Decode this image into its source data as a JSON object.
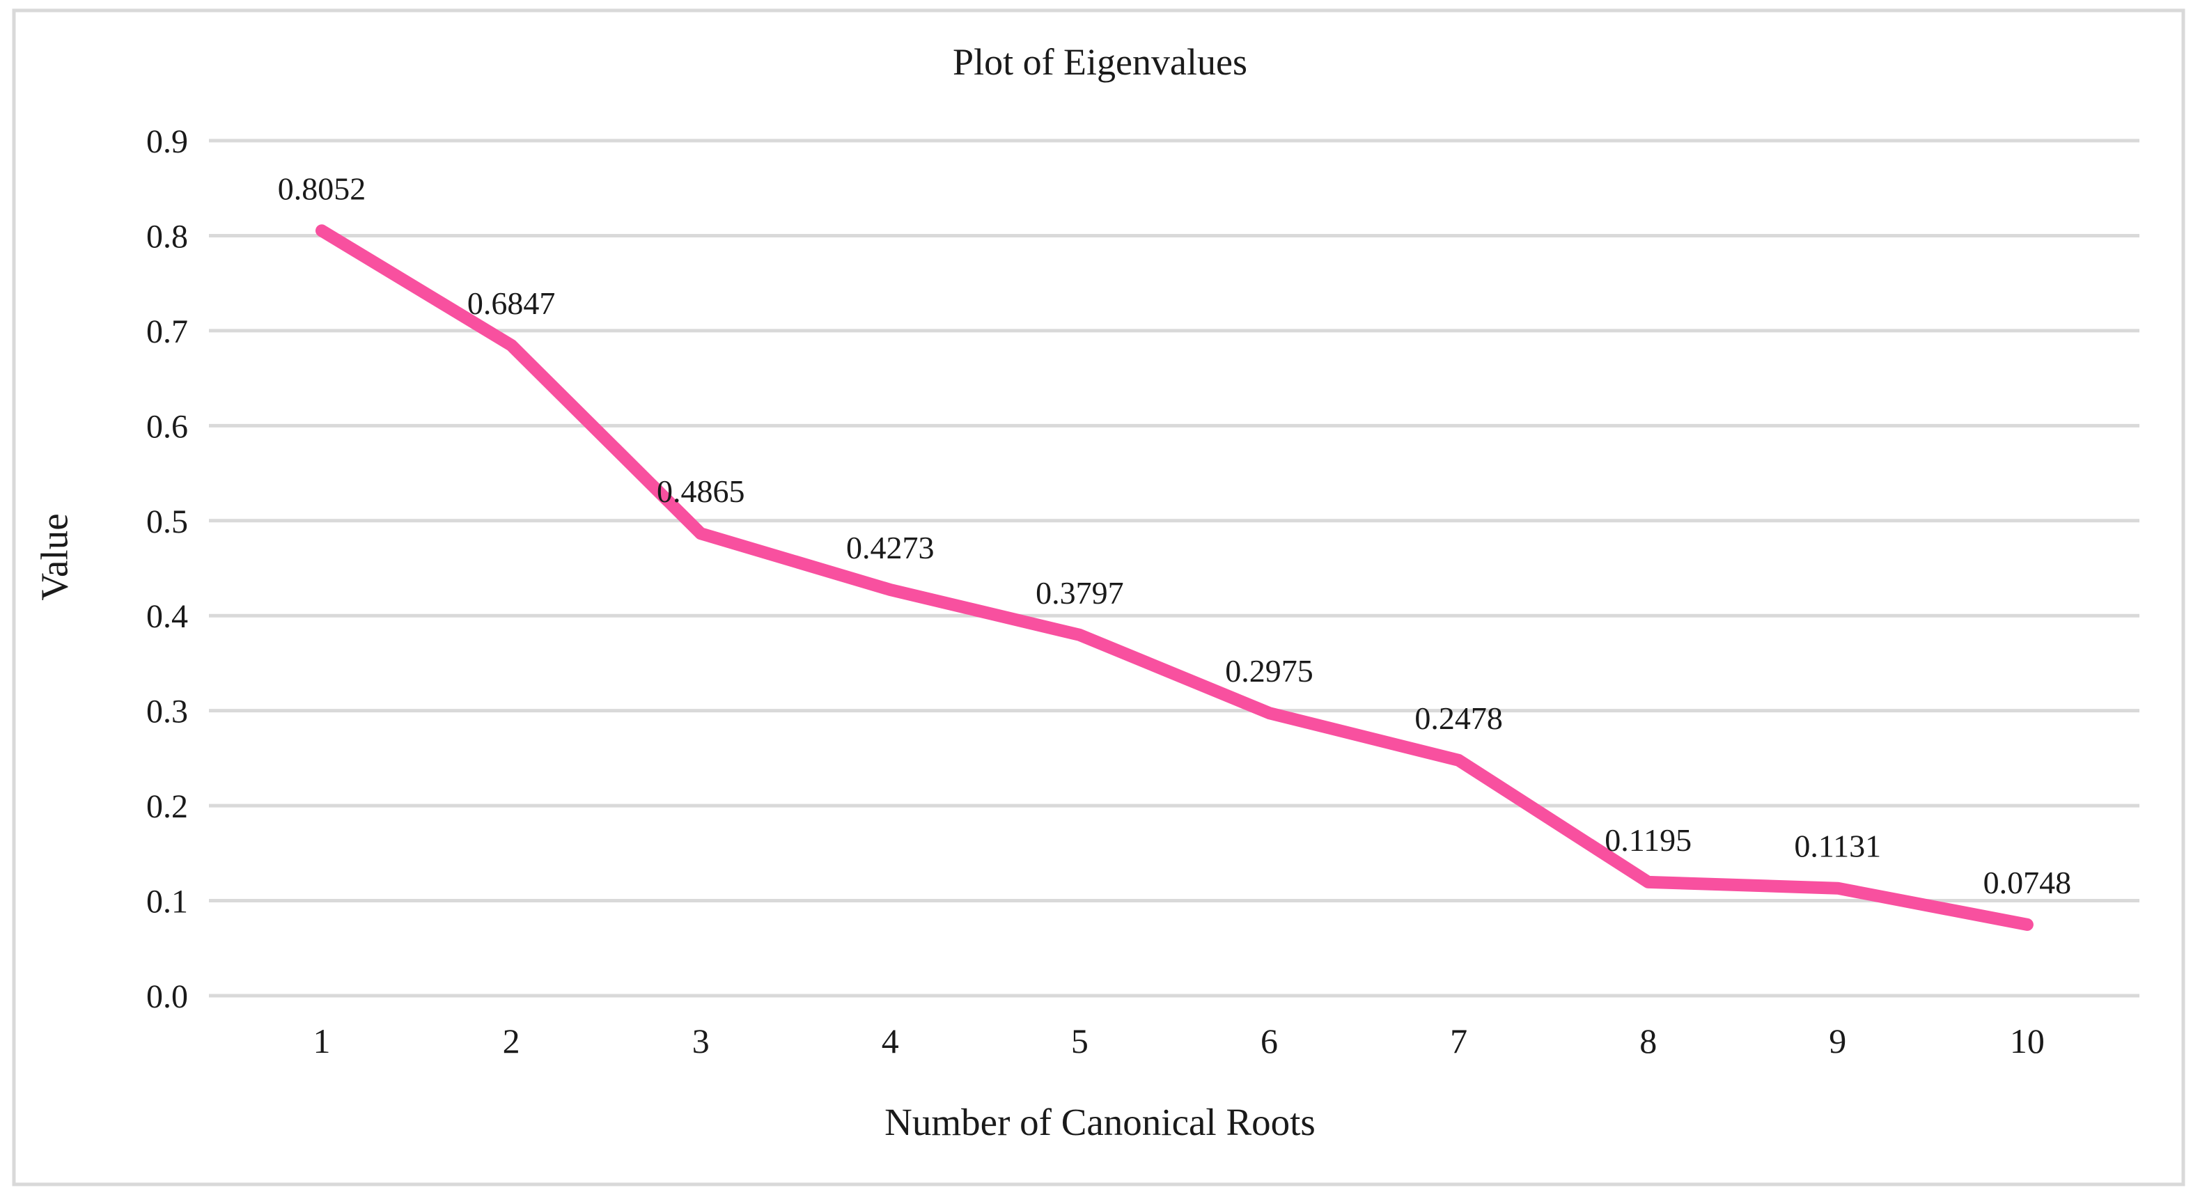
{
  "frame": {
    "background_color": "#ffffff",
    "border_color": "#d9d9d9",
    "text_color": "#1a1a1a"
  },
  "chart_data": {
    "type": "line",
    "title": "Plot of Eigenvalues",
    "xlabel": "Number of Canonical Roots",
    "ylabel": "Value",
    "x": [
      "1",
      "2",
      "3",
      "4",
      "5",
      "6",
      "7",
      "8",
      "9",
      "10"
    ],
    "values": [
      0.8052,
      0.6847,
      0.4865,
      0.4273,
      0.3797,
      0.2975,
      0.2478,
      0.1195,
      0.1131,
      0.0748
    ],
    "data_labels": [
      "0.8052",
      "0.6847",
      "0.4865",
      "0.4273",
      "0.3797",
      "0.2975",
      "0.2478",
      "0.1195",
      "0.1131",
      "0.0748"
    ],
    "y_tick_labels": [
      "0.9",
      "0.8",
      "0.7",
      "0.6",
      "0.5",
      "0.4",
      "0.3",
      "0.2",
      "0.1",
      "0.0"
    ],
    "ylim": [
      0.0,
      0.9
    ],
    "grid": true,
    "legend": "none",
    "line_color": "#f8509f",
    "gridline_color": "#d9d9d9"
  }
}
